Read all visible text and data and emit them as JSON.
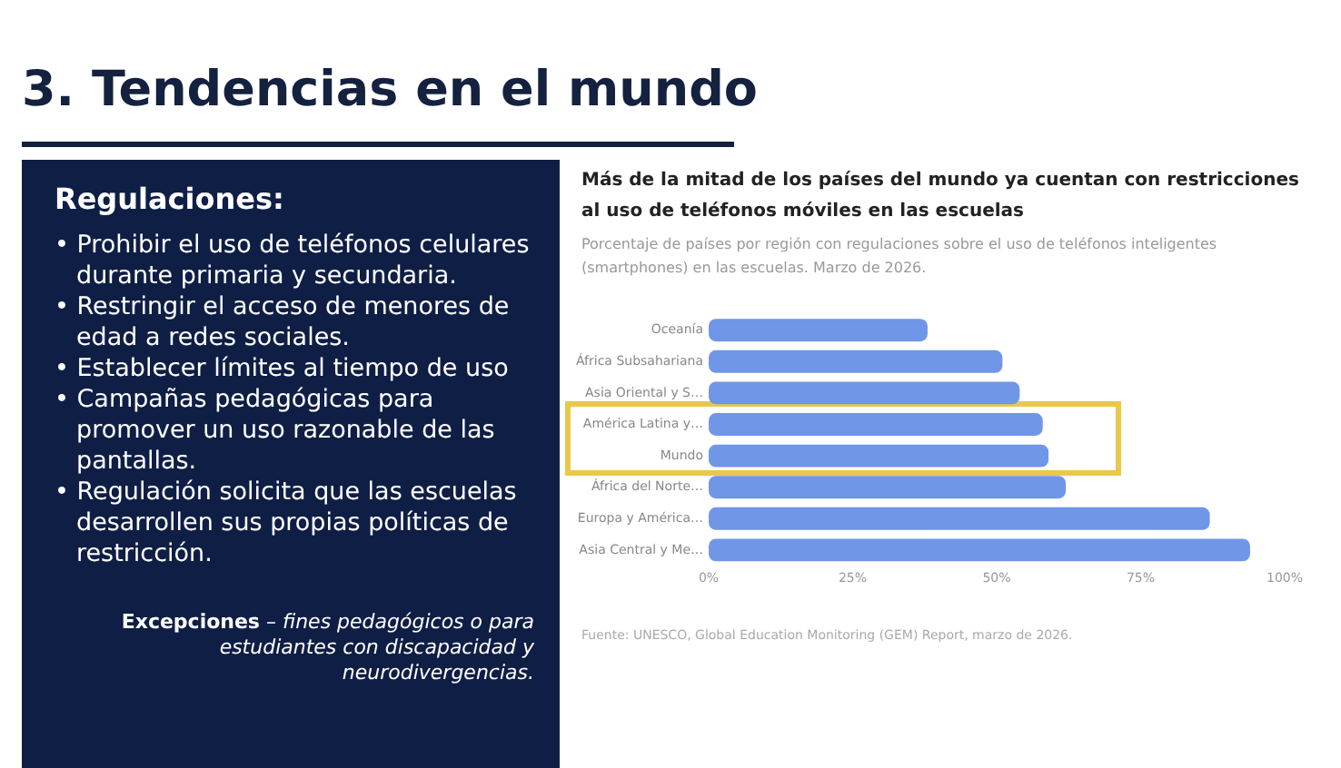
{
  "chart_data": {
    "type": "bar",
    "orientation": "horizontal",
    "title": "Más de la mitad de los países del mundo ya cuentan con restricciones al uso de teléfonos móviles en las escuelas",
    "subtitle": "Porcentaje de países por región con regulaciones sobre el uso de teléfonos inteligentes (smartphones) en las escuelas. Marzo de 2026.",
    "categories": [
      "Oceanía",
      "África Subsahariana",
      "Asia Oriental y S…",
      "América Latina y…",
      "Mundo",
      "África del Norte…",
      "Europa y América…",
      "Asia Central y Me…"
    ],
    "values": [
      38,
      51,
      54,
      58,
      59,
      62,
      87,
      94
    ],
    "color": "#7096e8",
    "xlim": [
      0,
      100
    ],
    "xticks": [
      {
        "value": 0,
        "label": "0%"
      },
      {
        "value": 25,
        "label": "25%"
      },
      {
        "value": 50,
        "label": "50%"
      },
      {
        "value": 75,
        "label": "75%"
      },
      {
        "value": 100,
        "label": "100%"
      }
    ],
    "grid": false,
    "legend": false,
    "annotations": [
      "3. Tendencias en el mundo",
      "Regulaciones:",
      "• Prohibir el uso de teléfonos celulares durante primaria y secundaria.",
      "• Restringir el acceso de menores de edad a redes sociales.",
      "• Establecer límites al tiempo de uso",
      "• Campañas pedagógicas para promover un uso razonable de las pantallas.",
      "• Regulación solicita que las escuelas desarrollen sus propias políticas de restricción.",
      "Excepciones",
      "– fines pedagógicos o para estudiantes con discapacidad y neurodivergencias.",
      "Fuente: UNESCO, Global Education Monitoring (GEM) Report, marzo de 2026."
    ]
  }
}
